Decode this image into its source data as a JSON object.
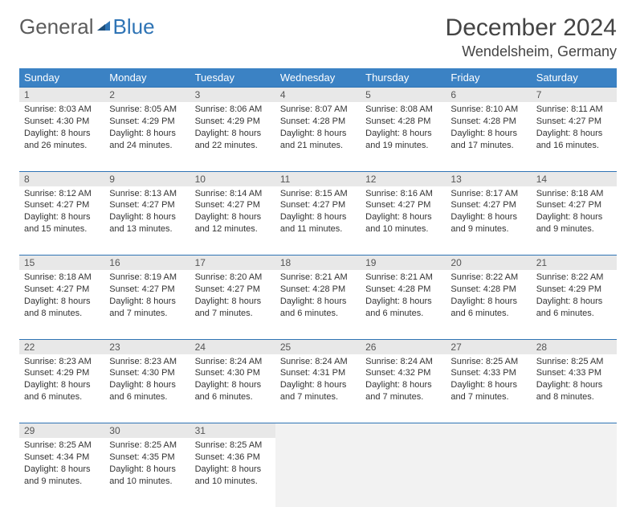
{
  "logo": {
    "general": "General",
    "blue": "Blue"
  },
  "title": "December 2024",
  "location": "Wendelsheim, Germany",
  "colors": {
    "header_bg": "#3b82c4",
    "header_text": "#ffffff",
    "border": "#2f74b5",
    "daynum_bg": "#e8e8e8",
    "logo_blue": "#2f74b5"
  },
  "weekdays": [
    "Sunday",
    "Monday",
    "Tuesday",
    "Wednesday",
    "Thursday",
    "Friday",
    "Saturday"
  ],
  "weeks": [
    [
      {
        "n": "1",
        "sr": "Sunrise: 8:03 AM",
        "ss": "Sunset: 4:30 PM",
        "dl": "Daylight: 8 hours and 26 minutes."
      },
      {
        "n": "2",
        "sr": "Sunrise: 8:05 AM",
        "ss": "Sunset: 4:29 PM",
        "dl": "Daylight: 8 hours and 24 minutes."
      },
      {
        "n": "3",
        "sr": "Sunrise: 8:06 AM",
        "ss": "Sunset: 4:29 PM",
        "dl": "Daylight: 8 hours and 22 minutes."
      },
      {
        "n": "4",
        "sr": "Sunrise: 8:07 AM",
        "ss": "Sunset: 4:28 PM",
        "dl": "Daylight: 8 hours and 21 minutes."
      },
      {
        "n": "5",
        "sr": "Sunrise: 8:08 AM",
        "ss": "Sunset: 4:28 PM",
        "dl": "Daylight: 8 hours and 19 minutes."
      },
      {
        "n": "6",
        "sr": "Sunrise: 8:10 AM",
        "ss": "Sunset: 4:28 PM",
        "dl": "Daylight: 8 hours and 17 minutes."
      },
      {
        "n": "7",
        "sr": "Sunrise: 8:11 AM",
        "ss": "Sunset: 4:27 PM",
        "dl": "Daylight: 8 hours and 16 minutes."
      }
    ],
    [
      {
        "n": "8",
        "sr": "Sunrise: 8:12 AM",
        "ss": "Sunset: 4:27 PM",
        "dl": "Daylight: 8 hours and 15 minutes."
      },
      {
        "n": "9",
        "sr": "Sunrise: 8:13 AM",
        "ss": "Sunset: 4:27 PM",
        "dl": "Daylight: 8 hours and 13 minutes."
      },
      {
        "n": "10",
        "sr": "Sunrise: 8:14 AM",
        "ss": "Sunset: 4:27 PM",
        "dl": "Daylight: 8 hours and 12 minutes."
      },
      {
        "n": "11",
        "sr": "Sunrise: 8:15 AM",
        "ss": "Sunset: 4:27 PM",
        "dl": "Daylight: 8 hours and 11 minutes."
      },
      {
        "n": "12",
        "sr": "Sunrise: 8:16 AM",
        "ss": "Sunset: 4:27 PM",
        "dl": "Daylight: 8 hours and 10 minutes."
      },
      {
        "n": "13",
        "sr": "Sunrise: 8:17 AM",
        "ss": "Sunset: 4:27 PM",
        "dl": "Daylight: 8 hours and 9 minutes."
      },
      {
        "n": "14",
        "sr": "Sunrise: 8:18 AM",
        "ss": "Sunset: 4:27 PM",
        "dl": "Daylight: 8 hours and 9 minutes."
      }
    ],
    [
      {
        "n": "15",
        "sr": "Sunrise: 8:18 AM",
        "ss": "Sunset: 4:27 PM",
        "dl": "Daylight: 8 hours and 8 minutes."
      },
      {
        "n": "16",
        "sr": "Sunrise: 8:19 AM",
        "ss": "Sunset: 4:27 PM",
        "dl": "Daylight: 8 hours and 7 minutes."
      },
      {
        "n": "17",
        "sr": "Sunrise: 8:20 AM",
        "ss": "Sunset: 4:27 PM",
        "dl": "Daylight: 8 hours and 7 minutes."
      },
      {
        "n": "18",
        "sr": "Sunrise: 8:21 AM",
        "ss": "Sunset: 4:28 PM",
        "dl": "Daylight: 8 hours and 6 minutes."
      },
      {
        "n": "19",
        "sr": "Sunrise: 8:21 AM",
        "ss": "Sunset: 4:28 PM",
        "dl": "Daylight: 8 hours and 6 minutes."
      },
      {
        "n": "20",
        "sr": "Sunrise: 8:22 AM",
        "ss": "Sunset: 4:28 PM",
        "dl": "Daylight: 8 hours and 6 minutes."
      },
      {
        "n": "21",
        "sr": "Sunrise: 8:22 AM",
        "ss": "Sunset: 4:29 PM",
        "dl": "Daylight: 8 hours and 6 minutes."
      }
    ],
    [
      {
        "n": "22",
        "sr": "Sunrise: 8:23 AM",
        "ss": "Sunset: 4:29 PM",
        "dl": "Daylight: 8 hours and 6 minutes."
      },
      {
        "n": "23",
        "sr": "Sunrise: 8:23 AM",
        "ss": "Sunset: 4:30 PM",
        "dl": "Daylight: 8 hours and 6 minutes."
      },
      {
        "n": "24",
        "sr": "Sunrise: 8:24 AM",
        "ss": "Sunset: 4:30 PM",
        "dl": "Daylight: 8 hours and 6 minutes."
      },
      {
        "n": "25",
        "sr": "Sunrise: 8:24 AM",
        "ss": "Sunset: 4:31 PM",
        "dl": "Daylight: 8 hours and 7 minutes."
      },
      {
        "n": "26",
        "sr": "Sunrise: 8:24 AM",
        "ss": "Sunset: 4:32 PM",
        "dl": "Daylight: 8 hours and 7 minutes."
      },
      {
        "n": "27",
        "sr": "Sunrise: 8:25 AM",
        "ss": "Sunset: 4:33 PM",
        "dl": "Daylight: 8 hours and 7 minutes."
      },
      {
        "n": "28",
        "sr": "Sunrise: 8:25 AM",
        "ss": "Sunset: 4:33 PM",
        "dl": "Daylight: 8 hours and 8 minutes."
      }
    ],
    [
      {
        "n": "29",
        "sr": "Sunrise: 8:25 AM",
        "ss": "Sunset: 4:34 PM",
        "dl": "Daylight: 8 hours and 9 minutes."
      },
      {
        "n": "30",
        "sr": "Sunrise: 8:25 AM",
        "ss": "Sunset: 4:35 PM",
        "dl": "Daylight: 8 hours and 10 minutes."
      },
      {
        "n": "31",
        "sr": "Sunrise: 8:25 AM",
        "ss": "Sunset: 4:36 PM",
        "dl": "Daylight: 8 hours and 10 minutes."
      },
      null,
      null,
      null,
      null
    ]
  ]
}
